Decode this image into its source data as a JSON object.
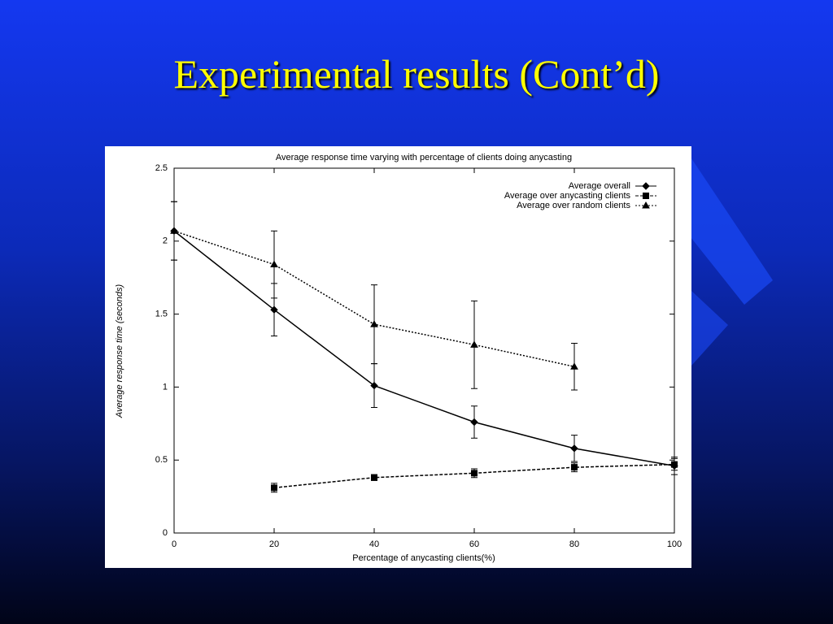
{
  "slide_title": "Experimental results (Cont’d)",
  "chart_data": {
    "type": "line",
    "title": "Average response time varying with percentage of clients doing anycasting",
    "x_label": "Percentage of anycasting clients(%)",
    "y_label": "Average response time (seconds)",
    "x": [
      0,
      20,
      40,
      60,
      80,
      100
    ],
    "xlim": [
      0,
      100
    ],
    "xticks": [
      0,
      20,
      40,
      60,
      80,
      100
    ],
    "ylim": [
      0,
      2.5
    ],
    "yticks": [
      0,
      0.5,
      1,
      1.5,
      2,
      2.5
    ],
    "legend": "upper-right",
    "series": [
      {
        "name": "Average overall",
        "color": "#000000",
        "dash": "solid",
        "marker": "diamond",
        "values": [
          2.07,
          1.53,
          1.01,
          0.76,
          0.58,
          0.46
        ],
        "errors": [
          0.2,
          0.18,
          0.15,
          0.11,
          0.09,
          0.06
        ]
      },
      {
        "name": "Average over anycasting clients",
        "color": "#000000",
        "dash": "dashed",
        "marker": "square",
        "values": [
          null,
          0.31,
          0.38,
          0.41,
          0.45,
          0.47
        ],
        "errors": [
          null,
          0.03,
          0.02,
          0.03,
          0.03,
          0.04
        ]
      },
      {
        "name": "Average over random clients",
        "color": "#000000",
        "dash": "dotted",
        "marker": "triangle",
        "values": [
          2.07,
          1.84,
          1.43,
          1.29,
          1.14,
          null
        ],
        "errors": [
          0.2,
          0.23,
          0.27,
          0.3,
          0.16,
          null
        ]
      }
    ]
  }
}
